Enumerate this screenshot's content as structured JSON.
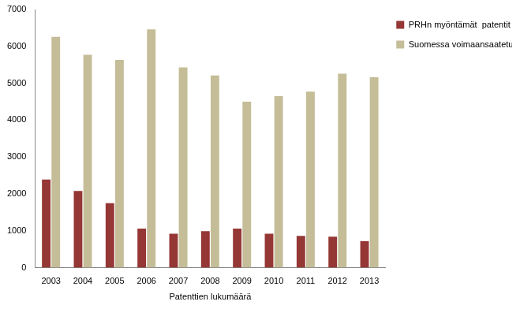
{
  "chart_data": {
    "type": "bar",
    "categories": [
      "2003",
      "2004",
      "2005",
      "2006",
      "2007",
      "2008",
      "2009",
      "2010",
      "2011",
      "2012",
      "2013"
    ],
    "series": [
      {
        "name": "PRHn myöntämät  patentit",
        "color": "#953735",
        "values": [
          2390,
          2080,
          1750,
          1060,
          920,
          990,
          1060,
          920,
          860,
          840,
          720
        ]
      },
      {
        "name": "Suomessa voimaansaatetut eurooppapatentit",
        "color": "#c4bd97",
        "values": [
          6260,
          5770,
          5630,
          6460,
          5430,
          5210,
          4500,
          4650,
          4770,
          5260,
          5160
        ]
      }
    ],
    "x_label": "Patenttien lukumäärä",
    "ylim": [
      0,
      7000
    ],
    "yticks": [
      0,
      1000,
      2000,
      3000,
      4000,
      5000,
      6000,
      7000
    ],
    "grid": false,
    "legend": "top-right"
  }
}
